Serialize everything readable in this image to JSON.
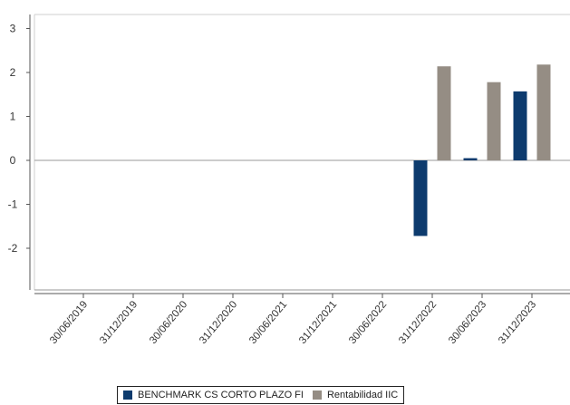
{
  "chart_data": {
    "type": "bar",
    "categories": [
      "30/06/2019",
      "31/12/2019",
      "30/06/2020",
      "31/12/2020",
      "30/06/2021",
      "31/12/2021",
      "30/06/2022",
      "31/12/2022",
      "30/06/2023",
      "31/12/2023"
    ],
    "series": [
      {
        "name": "BENCHMARK CS CORTO PLAZO FI",
        "color": "#0d3b6e",
        "values": [
          null,
          null,
          null,
          null,
          null,
          null,
          null,
          -1.72,
          0.05,
          1.57
        ]
      },
      {
        "name": "Rentabilidad IIC",
        "color": "#958d84",
        "values": [
          null,
          null,
          null,
          null,
          null,
          null,
          null,
          2.14,
          1.78,
          2.18
        ]
      }
    ],
    "yticks": [
      3,
      2,
      1,
      0,
      -1,
      -2
    ],
    "ylim": [
      -2.9,
      3.3
    ],
    "grid": false,
    "legend_position": "bottom",
    "zero_line_color": "#999999",
    "title": "",
    "xlabel": "",
    "ylabel": ""
  }
}
